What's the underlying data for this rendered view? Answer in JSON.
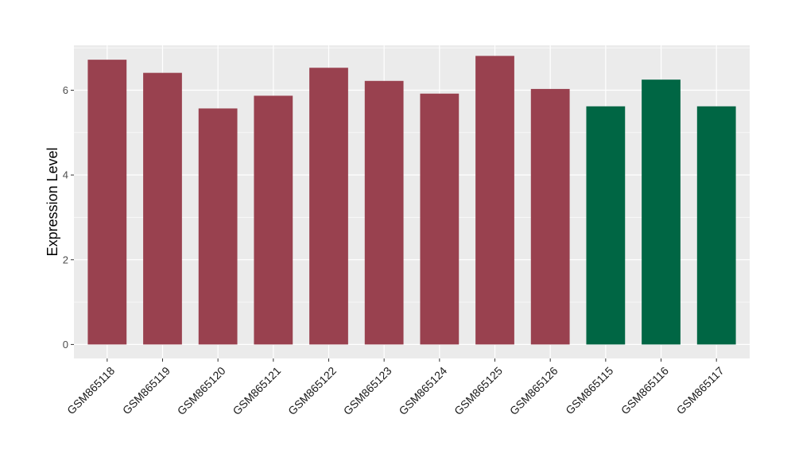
{
  "chart_data": {
    "type": "bar",
    "categories": [
      "GSM865118",
      "GSM865119",
      "GSM865120",
      "GSM865121",
      "GSM865122",
      "GSM865123",
      "GSM865124",
      "GSM865125",
      "GSM865126",
      "GSM865115",
      "GSM865116",
      "GSM865117"
    ],
    "values": [
      6.72,
      6.41,
      5.57,
      5.87,
      6.53,
      6.22,
      5.92,
      6.81,
      6.03,
      5.62,
      6.25,
      5.62
    ],
    "bar_colors": [
      "#99414f",
      "#99414f",
      "#99414f",
      "#99414f",
      "#99414f",
      "#99414f",
      "#99414f",
      "#99414f",
      "#99414f",
      "#006644",
      "#006644",
      "#006644"
    ],
    "title": "",
    "xlabel": "",
    "ylabel": "Expression Level",
    "ylim": [
      -0.33,
      7.06
    ],
    "yticks": [
      0,
      2,
      4,
      6
    ],
    "ytick_labels": [
      "0",
      "2",
      "4",
      "6"
    ],
    "grid": true,
    "legend": "none",
    "panel_color": "#ebebeb",
    "grid_color": "#ffffff"
  }
}
